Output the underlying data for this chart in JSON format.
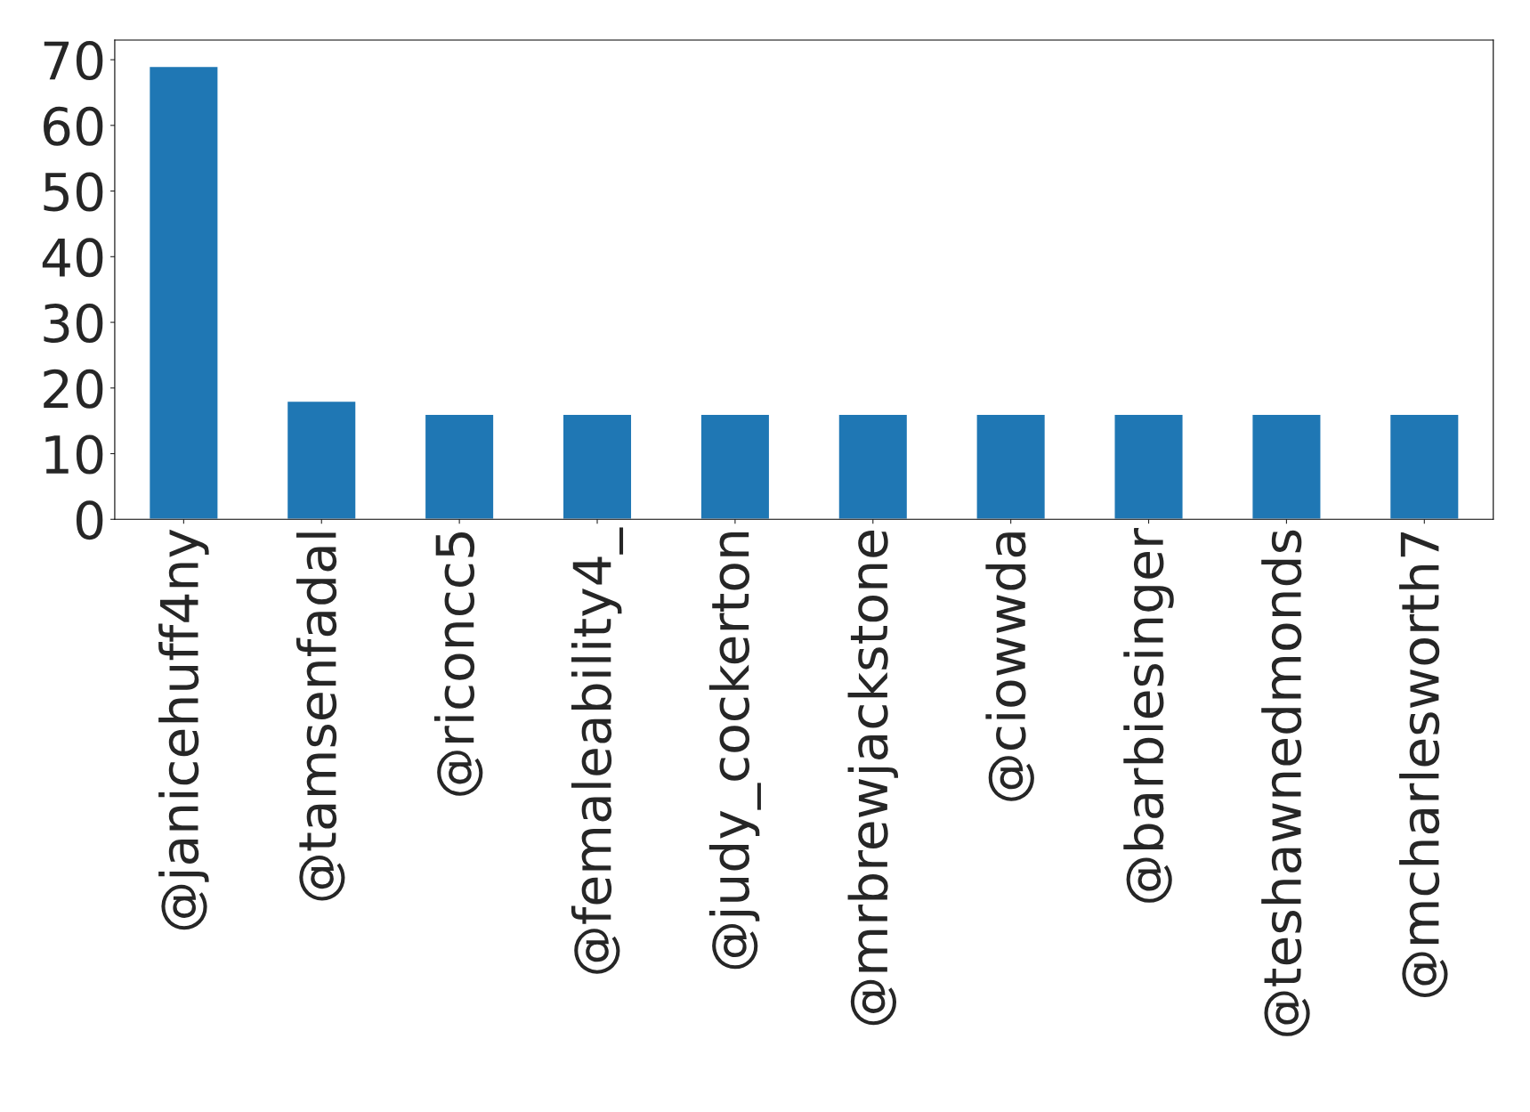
{
  "chart_data": {
    "type": "bar",
    "categories": [
      "@janicehuff4ny",
      "@tamsenfadal",
      "@riconcc5",
      "@femaleability4_",
      "@judy_cockerton",
      "@mrbrewjackstone",
      "@ciowwda",
      "@barbiesinger",
      "@teshawnedmonds",
      "@mcharlesworth7"
    ],
    "values": [
      69,
      18,
      16,
      16,
      16,
      16,
      16,
      16,
      16,
      16
    ],
    "color": "#1f77b4",
    "ylim": [
      0,
      73
    ],
    "yticks": [
      0,
      10,
      20,
      30,
      40,
      50,
      60,
      70
    ],
    "grid": false,
    "legend": false
  }
}
